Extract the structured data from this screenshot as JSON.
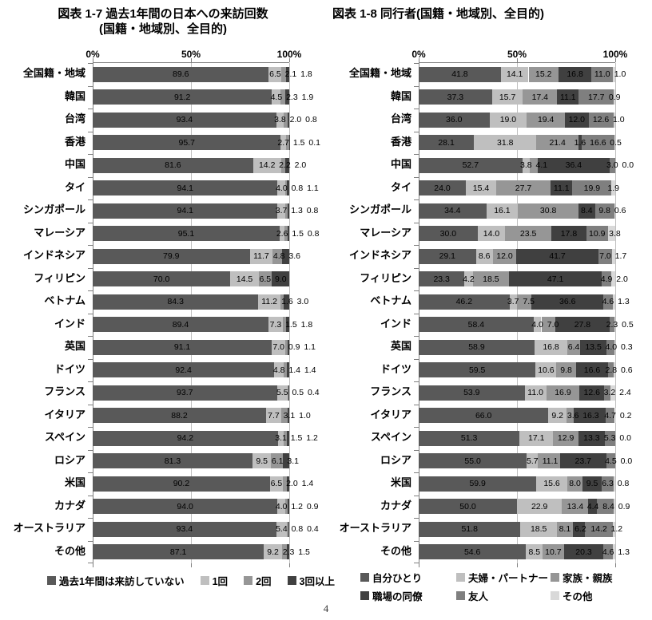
{
  "page_number": "4",
  "chart_data": [
    {
      "type": "bar",
      "orientation": "horizontal-stacked",
      "title": "図表 1-7 過去1年間の日本への来訪回数",
      "subtitle": "(国籍・地域別、全目的)",
      "x_ticks": [
        "0%",
        "50%",
        "100%"
      ],
      "xlim": [
        0,
        100
      ],
      "grid": true,
      "legend_position": "bottom",
      "categories": [
        "全国籍・地域",
        "韓国",
        "台湾",
        "香港",
        "中国",
        "タイ",
        "シンガポール",
        "マレーシア",
        "インドネシア",
        "フィリピン",
        "ベトナム",
        "インド",
        "英国",
        "ドイツ",
        "フランス",
        "イタリア",
        "スペイン",
        "ロシア",
        "米国",
        "カナダ",
        "オーストラリア",
        "その他"
      ],
      "series": [
        {
          "name": "過去1年間は来訪していない",
          "color": "#595959",
          "values": [
            89.6,
            91.2,
            93.4,
            95.7,
            81.6,
            94.1,
            94.1,
            95.1,
            79.9,
            70.0,
            84.3,
            89.4,
            91.1,
            92.4,
            93.7,
            88.2,
            94.2,
            81.3,
            90.2,
            94.0,
            93.4,
            87.1
          ]
        },
        {
          "name": "1回",
          "color": "#bfbfbf",
          "values": [
            6.5,
            4.5,
            3.8,
            2.7,
            14.2,
            4.0,
            3.7,
            2.6,
            11.7,
            14.5,
            11.2,
            7.3,
            7.0,
            4.8,
            5.5,
            7.7,
            3.1,
            9.5,
            6.5,
            4.0,
            5.4,
            9.2
          ]
        },
        {
          "name": "2回",
          "color": "#969696",
          "values": [
            2.1,
            2.3,
            2.0,
            1.5,
            2.2,
            0.8,
            1.3,
            1.5,
            4.8,
            6.5,
            1.6,
            1.5,
            0.9,
            1.4,
            0.5,
            3.1,
            1.5,
            6.1,
            2.0,
            1.2,
            0.8,
            2.3
          ]
        },
        {
          "name": "3回以上",
          "color": "#404040",
          "values": [
            1.8,
            1.9,
            0.8,
            0.1,
            2.0,
            1.1,
            0.8,
            0.8,
            3.6,
            9.0,
            3.0,
            1.8,
            1.1,
            1.4,
            0.4,
            1.0,
            1.2,
            3.1,
            1.4,
            0.9,
            0.4,
            1.5
          ]
        }
      ]
    },
    {
      "type": "bar",
      "orientation": "horizontal-stacked",
      "title": "図表 1-8 同行者(国籍・地域別、全目的)",
      "subtitle": "",
      "x_ticks": [
        "0%",
        "50%",
        "100%"
      ],
      "xlim": [
        0,
        100
      ],
      "grid": true,
      "legend_position": "bottom",
      "categories": [
        "全国籍・地域",
        "韓国",
        "台湾",
        "香港",
        "中国",
        "タイ",
        "シンガポール",
        "マレーシア",
        "インドネシア",
        "フィリピン",
        "ベトナム",
        "インド",
        "英国",
        "ドイツ",
        "フランス",
        "イタリア",
        "スペイン",
        "ロシア",
        "米国",
        "カナダ",
        "オーストラリア",
        "その他"
      ],
      "series": [
        {
          "name": "自分ひとり",
          "color": "#595959",
          "values": [
            41.8,
            37.3,
            36.0,
            28.1,
            52.7,
            24.0,
            34.4,
            30.0,
            29.1,
            23.3,
            46.2,
            58.4,
            58.9,
            59.5,
            53.9,
            66.0,
            51.3,
            55.0,
            59.9,
            50.0,
            51.8,
            54.6
          ]
        },
        {
          "name": "夫婦・パートナー",
          "color": "#bfbfbf",
          "values": [
            14.1,
            15.7,
            19.0,
            31.8,
            3.8,
            15.4,
            16.1,
            14.0,
            8.6,
            4.2,
            3.7,
            4.0,
            16.8,
            10.6,
            11.0,
            9.2,
            17.1,
            5.7,
            15.6,
            22.9,
            18.5,
            8.5
          ]
        },
        {
          "name": "家族・親族",
          "color": "#969696",
          "values": [
            15.2,
            17.4,
            19.4,
            21.4,
            4.1,
            27.7,
            30.8,
            23.5,
            12.0,
            18.5,
            7.5,
            7.0,
            6.4,
            9.8,
            16.9,
            3.6,
            12.9,
            11.1,
            8.0,
            13.4,
            8.1,
            10.7
          ]
        },
        {
          "name": "職場の同僚",
          "color": "#404040",
          "values": [
            16.8,
            11.1,
            12.0,
            1.6,
            36.4,
            11.1,
            8.4,
            17.8,
            41.7,
            47.1,
            36.6,
            27.8,
            13.5,
            16.6,
            12.6,
            16.3,
            13.3,
            23.7,
            9.5,
            4.4,
            6.2,
            20.3
          ]
        },
        {
          "name": "友人",
          "color": "#7f7f7f",
          "values": [
            11.0,
            17.7,
            12.6,
            16.6,
            3.0,
            19.9,
            9.8,
            10.9,
            7.0,
            4.9,
            4.6,
            2.3,
            4.0,
            2.8,
            3.2,
            4.7,
            5.3,
            4.5,
            6.3,
            8.4,
            14.2,
            4.6
          ]
        },
        {
          "name": "その他",
          "color": "#d9d9d9",
          "values": [
            1.0,
            0.9,
            1.0,
            0.5,
            0.0,
            1.9,
            0.6,
            3.8,
            1.7,
            2.0,
            1.3,
            0.5,
            0.3,
            0.6,
            2.4,
            0.2,
            0.0,
            0.0,
            0.8,
            0.9,
            1.2,
            1.3
          ]
        }
      ]
    }
  ]
}
